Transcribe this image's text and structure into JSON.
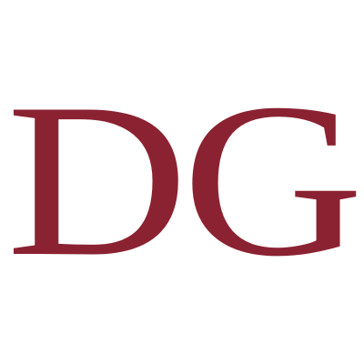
{
  "logo": {
    "text": "DG",
    "color": "#8b2232",
    "background": "#ffffff"
  }
}
